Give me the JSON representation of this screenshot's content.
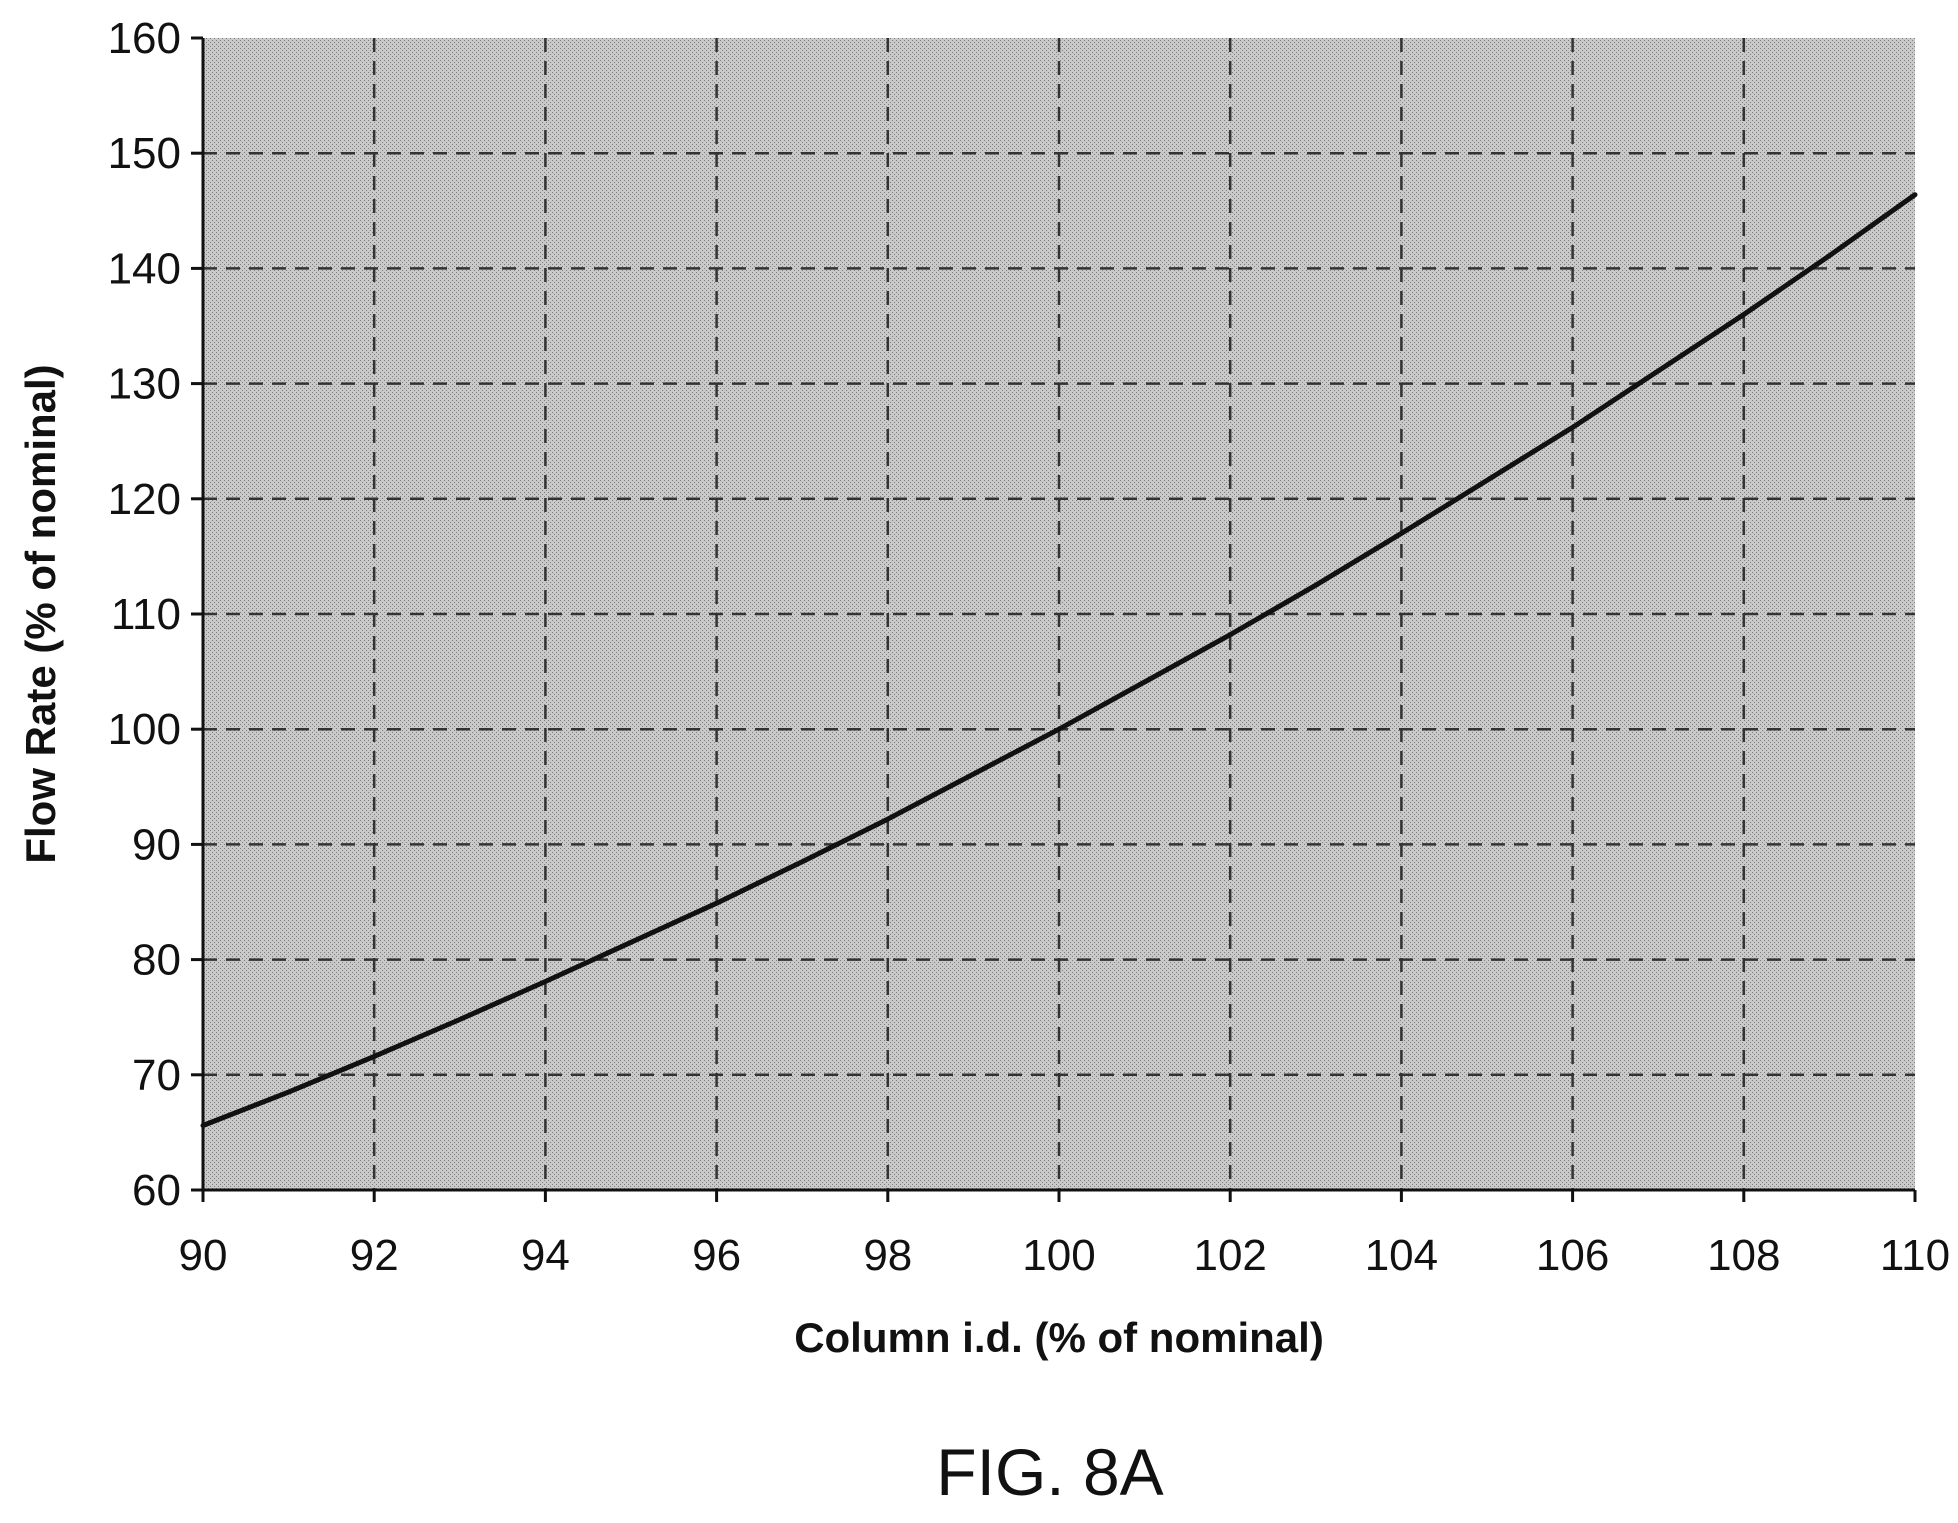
{
  "chart_data": {
    "type": "line",
    "title": "",
    "caption": "FIG. 8A",
    "xlabel": "Column i.d. (% of nominal)",
    "ylabel": "Flow Rate (% of nominal)",
    "xlim": [
      90,
      110
    ],
    "ylim": [
      60,
      160
    ],
    "xticks": [
      "90",
      "92",
      "94",
      "96",
      "98",
      "100",
      "102",
      "104",
      "106",
      "108",
      "110"
    ],
    "yticks": [
      "60",
      "70",
      "80",
      "90",
      "100",
      "110",
      "120",
      "130",
      "140",
      "150",
      "160"
    ],
    "grid": true,
    "grid_style": "dashed",
    "plot_background": "#c4c4c4",
    "line_color": "#111111",
    "series": [
      {
        "x": [
          90,
          91,
          92,
          93,
          94,
          95,
          96,
          97,
          98,
          99,
          100,
          101,
          102,
          103,
          104,
          105,
          106,
          107,
          108,
          109,
          110
        ],
        "y": [
          65.6,
          68.5,
          71.6,
          74.8,
          78.1,
          81.5,
          84.9,
          88.5,
          92.2,
          96.1,
          100.0,
          104.1,
          108.2,
          112.5,
          117.0,
          121.6,
          126.2,
          131.1,
          136.0,
          141.1,
          146.4
        ]
      }
    ]
  }
}
